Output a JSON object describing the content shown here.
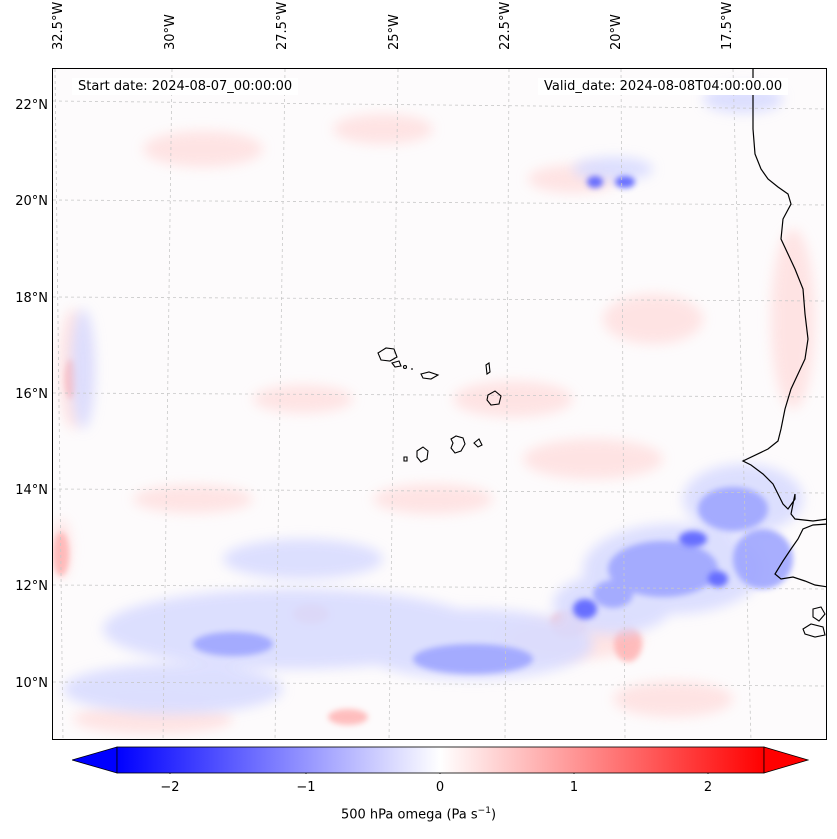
{
  "map": {
    "start_date": "Start date: 2024-08-07_00:00:00",
    "valid_date": "Valid_date: 2024-08-08T04:00:00.00",
    "lon_labels": [
      "32.5°W",
      "30°W",
      "27.5°W",
      "25°W",
      "22.5°W",
      "20°W",
      "17.5°W"
    ],
    "lat_labels": [
      "22°N",
      "20°N",
      "18°N",
      "16°N",
      "14°N",
      "12°N",
      "10°N"
    ],
    "field": "500 hPa omega",
    "colormap": "bwr",
    "colors": {
      "negative": "#0000ff",
      "zero": "#ffffff",
      "positive": "#ff0000",
      "coast": "#000000",
      "grid": "#c8c8c8"
    }
  },
  "colorbar": {
    "ticks": [
      "−2",
      "−1",
      "0",
      "1",
      "2"
    ],
    "tick_values": [
      -2,
      -1,
      0,
      1,
      2
    ],
    "range": [
      -2.5,
      2.5
    ],
    "extend": "both",
    "label": "500 hPa omega (Pa s",
    "label_sup": "−1",
    "label_end": ")"
  }
}
